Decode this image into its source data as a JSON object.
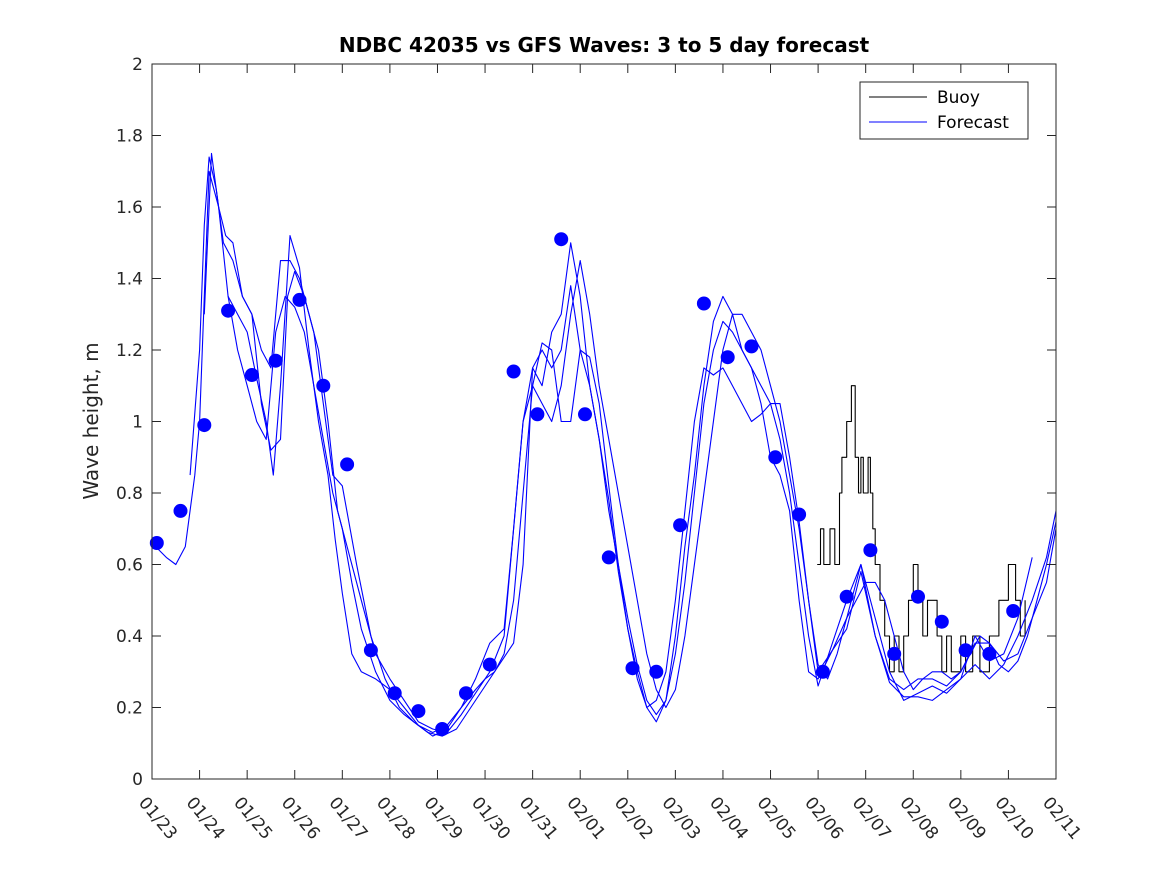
{
  "chart_data": {
    "type": "line",
    "title": "NDBC 42035 vs GFS Waves: 3 to 5 day forecast",
    "xlabel": "",
    "ylabel": "Wave height, m",
    "xlim": [
      0,
      19
    ],
    "ylim": [
      0,
      2
    ],
    "yticks": [
      0,
      0.2,
      0.4,
      0.6,
      0.8,
      1,
      1.2,
      1.4,
      1.6,
      1.8,
      2
    ],
    "ytick_labels": [
      "0",
      "0.2",
      "0.4",
      "0.6",
      "0.8",
      "1",
      "1.2",
      "1.4",
      "1.6",
      "1.8",
      "2"
    ],
    "xticks": [
      0,
      1,
      2,
      3,
      4,
      5,
      6,
      7,
      8,
      9,
      10,
      11,
      12,
      13,
      14,
      15,
      16,
      17,
      18,
      19
    ],
    "xtick_labels": [
      "01/23",
      "01/24",
      "01/25",
      "01/26",
      "01/27",
      "01/28",
      "01/29",
      "01/30",
      "01/31",
      "02/01",
      "02/02",
      "02/03",
      "02/04",
      "02/05",
      "02/06",
      "02/07",
      "02/08",
      "02/09",
      "02/10",
      "02/11"
    ],
    "legend": {
      "position": "top-right",
      "entries": [
        {
          "name": "Buoy",
          "color": "#000000"
        },
        {
          "name": "Forecast",
          "color": "#0000ff"
        }
      ]
    },
    "colors": {
      "buoy": "#000000",
      "forecast": "#0000ff",
      "marker": "#0000ff",
      "axis": "#262626"
    },
    "series": [
      {
        "name": "Buoy",
        "style": "step",
        "x": [
          13.98,
          14.05,
          14.12,
          14.25,
          14.35,
          14.45,
          14.5,
          14.6,
          14.7,
          14.78,
          14.85,
          14.9,
          14.95,
          15.05,
          15.1,
          15.15,
          15.2,
          15.3,
          15.4,
          15.5,
          15.6,
          15.7,
          15.8,
          15.9,
          16.0,
          16.1,
          16.2,
          16.3,
          16.5,
          16.6,
          16.7,
          16.8,
          17.0,
          17.1,
          17.25,
          17.4,
          17.6,
          17.8,
          18.0,
          18.15,
          18.25,
          18.35
        ],
        "y": [
          0.6,
          0.7,
          0.6,
          0.7,
          0.6,
          0.8,
          0.9,
          1.0,
          1.1,
          0.9,
          0.8,
          0.9,
          0.8,
          0.9,
          0.8,
          0.7,
          0.6,
          0.5,
          0.4,
          0.3,
          0.4,
          0.3,
          0.4,
          0.5,
          0.6,
          0.5,
          0.4,
          0.5,
          0.4,
          0.3,
          0.4,
          0.3,
          0.4,
          0.3,
          0.4,
          0.3,
          0.4,
          0.5,
          0.6,
          0.5,
          0.4,
          0.5
        ]
      },
      {
        "name": "Forecast",
        "x": [
          0,
          0.3,
          0.5,
          0.7,
          0.9,
          1.0,
          1.1,
          1.2,
          1.4,
          1.6,
          1.8,
          2.0,
          2.2,
          2.4,
          2.6,
          2.8,
          3.0,
          3.2,
          3.4,
          3.6,
          3.8,
          4.0,
          4.2,
          4.4,
          4.7,
          5.0,
          5.3,
          5.6,
          5.9,
          6.2,
          6.5,
          6.8,
          7.0,
          7.2,
          7.4,
          7.6,
          7.8,
          8.0,
          8.2,
          8.4,
          8.6,
          8.8,
          9.0,
          9.2,
          9.4,
          9.6,
          9.8,
          10.0,
          10.2,
          10.4,
          10.6,
          10.8,
          11.0,
          11.2,
          11.4,
          11.6,
          11.8,
          12.0,
          12.2,
          12.4,
          12.6,
          12.8,
          13.0,
          13.2,
          13.4,
          13.6,
          13.8,
          14.0,
          14.2,
          14.4,
          14.6,
          14.8,
          15.0,
          15.2,
          15.4,
          15.6,
          15.8,
          16.0,
          16.2,
          16.4,
          16.6,
          16.8,
          17.0,
          17.2,
          17.4,
          17.6,
          17.8,
          18.0,
          18.2,
          18.4,
          18.6,
          18.8,
          19.0
        ],
        "y": [
          0.66,
          0.62,
          0.6,
          0.65,
          0.85,
          1.0,
          1.35,
          1.7,
          1.6,
          1.35,
          1.2,
          1.1,
          1.0,
          0.95,
          1.25,
          1.35,
          1.32,
          1.25,
          1.1,
          0.95,
          0.8,
          0.7,
          0.55,
          0.42,
          0.3,
          0.22,
          0.18,
          0.15,
          0.13,
          0.15,
          0.2,
          0.25,
          0.28,
          0.3,
          0.35,
          0.5,
          0.8,
          1.1,
          1.05,
          1.0,
          1.1,
          1.3,
          1.45,
          1.3,
          1.1,
          0.95,
          0.8,
          0.65,
          0.5,
          0.35,
          0.25,
          0.2,
          0.25,
          0.4,
          0.6,
          0.8,
          1.0,
          1.2,
          1.3,
          1.3,
          1.25,
          1.2,
          1.1,
          1.0,
          0.85,
          0.7,
          0.5,
          0.32,
          0.28,
          0.35,
          0.45,
          0.5,
          0.55,
          0.55,
          0.5,
          0.4,
          0.3,
          0.25,
          0.28,
          0.3,
          0.3,
          0.28,
          0.3,
          0.35,
          0.4,
          0.38,
          0.32,
          0.3,
          0.33,
          0.4,
          0.5,
          0.6,
          0.72
        ]
      },
      {
        "name": "Forecast",
        "x": [
          0.8,
          1.0,
          1.1,
          1.2,
          1.35,
          1.5,
          1.7,
          1.9,
          2.1,
          2.3,
          2.5,
          2.7,
          2.9,
          3.1,
          3.3,
          3.5,
          3.7,
          3.9,
          4.1,
          4.4,
          4.7,
          5.0,
          5.3,
          5.6,
          5.9,
          6.2,
          6.5,
          6.8,
          7.1,
          7.4,
          7.6,
          7.8,
          8.0,
          8.2,
          8.4,
          8.6,
          8.8,
          9.0,
          9.2,
          9.4,
          9.6,
          9.8,
          10.0,
          10.2,
          10.4,
          10.6,
          10.8,
          11.0,
          11.2,
          11.4,
          11.6,
          11.8,
          12.0,
          12.2,
          12.4,
          12.6,
          12.8,
          13.0,
          13.2,
          13.4,
          13.6,
          13.8,
          14.0,
          14.3,
          14.6,
          14.9,
          15.2,
          15.5,
          15.8,
          16.1,
          16.4,
          16.7,
          17.0,
          17.3,
          17.6,
          17.9,
          18.2,
          18.5,
          18.8,
          19.0
        ],
        "y": [
          0.85,
          1.2,
          1.55,
          1.74,
          1.65,
          1.5,
          1.45,
          1.35,
          1.3,
          1.2,
          1.15,
          1.45,
          1.45,
          1.4,
          1.3,
          1.2,
          1.0,
          0.75,
          0.65,
          0.5,
          0.35,
          0.28,
          0.22,
          0.16,
          0.14,
          0.13,
          0.18,
          0.24,
          0.3,
          0.4,
          0.7,
          1.0,
          1.15,
          1.2,
          1.15,
          1.2,
          1.38,
          1.2,
          1.1,
          0.95,
          0.75,
          0.6,
          0.45,
          0.32,
          0.22,
          0.18,
          0.22,
          0.35,
          0.55,
          0.8,
          1.05,
          1.2,
          1.28,
          1.25,
          1.2,
          1.15,
          1.1,
          1.05,
          0.95,
          0.8,
          0.6,
          0.4,
          0.26,
          0.38,
          0.5,
          0.6,
          0.4,
          0.28,
          0.25,
          0.28,
          0.28,
          0.26,
          0.3,
          0.38,
          0.38,
          0.33,
          0.35,
          0.45,
          0.55,
          0.7
        ]
      },
      {
        "name": "Forecast",
        "x": [
          1.1,
          1.25,
          1.4,
          1.55,
          1.7,
          1.9,
          2.1,
          2.3,
          2.5,
          2.7,
          2.85,
          3.0,
          3.2,
          3.4,
          3.6,
          3.8,
          4.0,
          4.3,
          4.6,
          4.9,
          5.2,
          5.5,
          5.8,
          6.1,
          6.4,
          6.7,
          7.0,
          7.3,
          7.6,
          7.8,
          8.0,
          8.2,
          8.4,
          8.6,
          8.8,
          9.0,
          9.2,
          9.4,
          9.6,
          9.8,
          10.0,
          10.2,
          10.4,
          10.6,
          10.8,
          11.0,
          11.2,
          11.4,
          11.6,
          11.8,
          12.0,
          12.2,
          12.4,
          12.6,
          12.8,
          13.0,
          13.2,
          13.4,
          13.6,
          13.8,
          14.0,
          14.3,
          14.6,
          14.9,
          15.2,
          15.5,
          15.8,
          16.1,
          16.4,
          16.7,
          17.0,
          17.3,
          17.6,
          17.9,
          18.2,
          18.5,
          18.8,
          19.0
        ],
        "y": [
          1.3,
          1.75,
          1.6,
          1.52,
          1.5,
          1.35,
          1.3,
          1.05,
          0.92,
          0.95,
          1.35,
          1.42,
          1.35,
          1.25,
          1.05,
          0.85,
          0.82,
          0.6,
          0.4,
          0.28,
          0.2,
          0.16,
          0.13,
          0.12,
          0.14,
          0.2,
          0.26,
          0.32,
          0.38,
          0.6,
          1.15,
          1.1,
          1.25,
          1.3,
          1.5,
          1.35,
          1.1,
          0.95,
          0.78,
          0.58,
          0.42,
          0.3,
          0.2,
          0.16,
          0.22,
          0.4,
          0.65,
          0.85,
          1.1,
          1.28,
          1.35,
          1.3,
          1.2,
          1.15,
          1.05,
          0.9,
          0.85,
          0.75,
          0.5,
          0.3,
          0.28,
          0.36,
          0.45,
          0.6,
          0.45,
          0.3,
          0.22,
          0.24,
          0.26,
          0.24,
          0.28,
          0.32,
          0.28,
          0.32,
          0.4,
          0.5,
          0.62,
          0.75
        ]
      },
      {
        "name": "Forecast",
        "x": [
          1.6,
          1.8,
          2.0,
          2.2,
          2.4,
          2.55,
          2.7,
          2.9,
          3.1,
          3.3,
          3.5,
          3.7,
          3.85,
          4.0,
          4.2,
          4.4,
          4.7,
          5.0,
          5.3,
          5.6,
          5.9,
          6.2,
          6.5,
          6.8,
          7.1,
          7.4,
          7.6,
          7.8,
          8.0,
          8.2,
          8.4,
          8.6,
          8.8,
          9.0,
          9.2,
          9.4,
          9.6,
          9.8,
          10.0,
          10.2,
          10.4,
          10.6,
          10.8,
          11.0,
          11.2,
          11.4,
          11.6,
          11.8,
          12.0,
          12.2,
          12.4,
          12.6,
          12.8,
          13.0,
          13.2,
          13.4,
          13.6,
          13.8,
          14.0,
          14.3,
          14.6,
          14.9,
          15.2,
          15.5,
          15.8,
          16.1,
          16.4,
          16.7,
          17.0,
          17.3,
          17.6,
          17.9,
          18.2,
          18.5
        ],
        "y": [
          1.35,
          1.3,
          1.25,
          1.12,
          1.0,
          0.85,
          1.1,
          1.52,
          1.43,
          1.2,
          1.0,
          0.85,
          0.67,
          0.52,
          0.35,
          0.3,
          0.28,
          0.25,
          0.2,
          0.15,
          0.12,
          0.14,
          0.2,
          0.28,
          0.38,
          0.42,
          0.7,
          1.0,
          1.1,
          1.22,
          1.2,
          1.0,
          1.0,
          1.2,
          1.18,
          1.05,
          0.82,
          0.6,
          0.42,
          0.28,
          0.2,
          0.22,
          0.3,
          0.5,
          0.75,
          1.0,
          1.15,
          1.13,
          1.15,
          1.1,
          1.05,
          1.0,
          1.02,
          1.05,
          1.05,
          0.9,
          0.72,
          0.5,
          0.3,
          0.36,
          0.42,
          0.58,
          0.4,
          0.27,
          0.23,
          0.23,
          0.22,
          0.25,
          0.28,
          0.4,
          0.33,
          0.35,
          0.45,
          0.62
        ]
      }
    ],
    "markers": {
      "name": "Forecast points",
      "x": [
        0.1,
        0.6,
        1.1,
        1.6,
        2.1,
        2.6,
        3.1,
        3.6,
        4.1,
        4.6,
        5.1,
        5.6,
        6.1,
        6.6,
        7.1,
        7.6,
        8.1,
        8.6,
        9.1,
        9.6,
        10.1,
        10.6,
        11.1,
        11.6,
        12.1,
        12.6,
        13.1,
        13.6,
        14.1,
        14.6,
        15.1,
        15.6,
        16.1,
        16.6,
        17.1,
        17.6,
        18.1
      ],
      "y": [
        0.66,
        0.75,
        0.99,
        1.31,
        1.13,
        1.17,
        1.34,
        1.1,
        0.88,
        0.36,
        0.24,
        0.19,
        0.14,
        0.24,
        0.32,
        1.14,
        1.02,
        1.51,
        1.02,
        0.62,
        0.31,
        0.3,
        0.71,
        1.33,
        1.18,
        1.21,
        0.9,
        0.74,
        0.3,
        0.51,
        0.64,
        0.35,
        0.51,
        0.44,
        0.36,
        0.35,
        0.47
      ]
    }
  }
}
